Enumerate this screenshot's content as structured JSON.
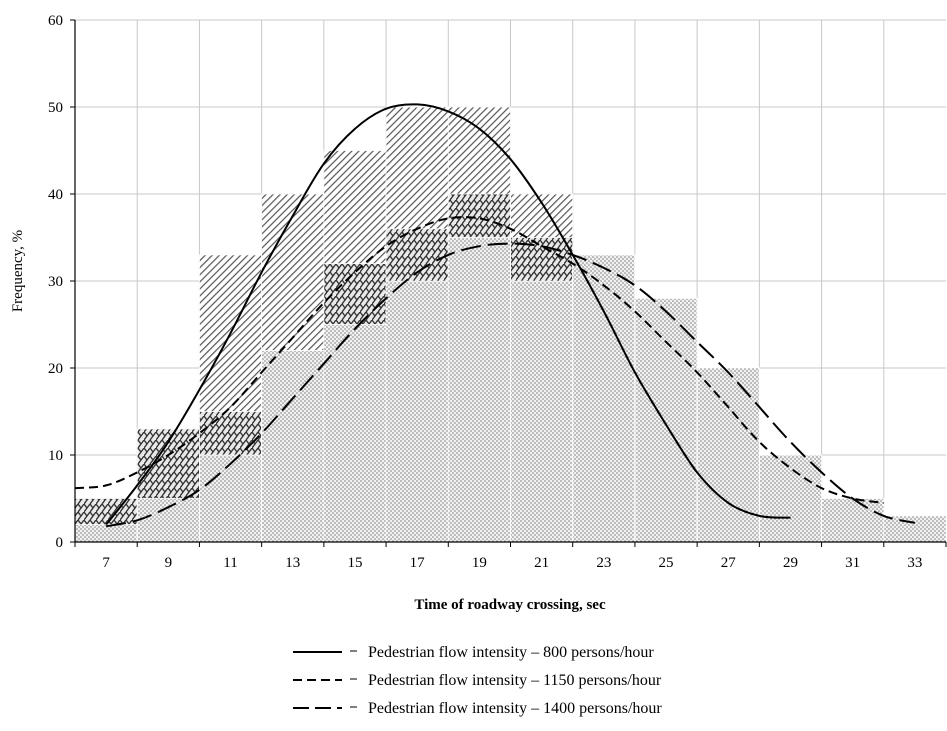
{
  "chart_data": {
    "type": "bar",
    "xlabel": "Time of roadway crossing, sec",
    "ylabel": "Frequency, %",
    "ylim": [
      0,
      60
    ],
    "yticks": [
      0,
      10,
      20,
      30,
      40,
      50,
      60
    ],
    "xticks": [
      7,
      9,
      11,
      13,
      15,
      17,
      19,
      21,
      23,
      25,
      27,
      29,
      31,
      33
    ],
    "grid": true,
    "legend_position": "bottom",
    "histograms": [
      {
        "pattern": "diagonal-hatch",
        "color": "#555555",
        "bins": [
          {
            "from": 6,
            "to": 8,
            "value": 5
          },
          {
            "from": 8,
            "to": 10,
            "value": 13
          },
          {
            "from": 10,
            "to": 12,
            "value": 33
          },
          {
            "from": 12,
            "to": 14,
            "value": 40
          },
          {
            "from": 14,
            "to": 16,
            "value": 45
          },
          {
            "from": 16,
            "to": 18,
            "value": 50
          },
          {
            "from": 18,
            "to": 20,
            "value": 50
          },
          {
            "from": 20,
            "to": 22,
            "value": 40
          },
          {
            "from": 22,
            "to": 24,
            "value": 33
          },
          {
            "from": 24,
            "to": 26,
            "value": 28
          },
          {
            "from": 26,
            "to": 28,
            "value": 20
          },
          {
            "from": 28,
            "to": 30,
            "value": 10
          },
          {
            "from": 30,
            "to": 32,
            "value": 5
          },
          {
            "from": 32,
            "to": 34,
            "value": 3
          }
        ]
      },
      {
        "pattern": "weave",
        "color": "#333333",
        "bins": [
          {
            "from": 6,
            "to": 8,
            "value": 5
          },
          {
            "from": 8,
            "to": 10,
            "value": 13
          },
          {
            "from": 10,
            "to": 12,
            "value": 15
          },
          {
            "from": 12,
            "to": 14,
            "value": 22
          },
          {
            "from": 14,
            "to": 16,
            "value": 32
          },
          {
            "from": 16,
            "to": 18,
            "value": 36
          },
          {
            "from": 18,
            "to": 20,
            "value": 40
          },
          {
            "from": 20,
            "to": 22,
            "value": 35
          },
          {
            "from": 22,
            "to": 24,
            "value": 33
          },
          {
            "from": 24,
            "to": 26,
            "value": 28
          },
          {
            "from": 26,
            "to": 28,
            "value": 20
          },
          {
            "from": 28,
            "to": 30,
            "value": 10
          },
          {
            "from": 30,
            "to": 32,
            "value": 5
          },
          {
            "from": 32,
            "to": 34,
            "value": 3
          }
        ]
      },
      {
        "pattern": "dots",
        "color": "#777777",
        "bins": [
          {
            "from": 6,
            "to": 8,
            "value": 2
          },
          {
            "from": 8,
            "to": 10,
            "value": 5
          },
          {
            "from": 10,
            "to": 12,
            "value": 10
          },
          {
            "from": 12,
            "to": 14,
            "value": 22
          },
          {
            "from": 14,
            "to": 16,
            "value": 25
          },
          {
            "from": 16,
            "to": 18,
            "value": 30
          },
          {
            "from": 18,
            "to": 20,
            "value": 35
          },
          {
            "from": 20,
            "to": 22,
            "value": 30
          },
          {
            "from": 22,
            "to": 24,
            "value": 33
          },
          {
            "from": 24,
            "to": 26,
            "value": 28
          },
          {
            "from": 26,
            "to": 28,
            "value": 20
          },
          {
            "from": 28,
            "to": 30,
            "value": 10
          },
          {
            "from": 30,
            "to": 32,
            "value": 5
          },
          {
            "from": 32,
            "to": 34,
            "value": 3
          }
        ]
      }
    ],
    "series": [
      {
        "name": "Pedestrian flow intensity – 800 persons/hour",
        "dash": "solid",
        "x": [
          7,
          8,
          9,
          10,
          11,
          12,
          13,
          14,
          15,
          16,
          17,
          18,
          19,
          20,
          21,
          22,
          23,
          24,
          25,
          26,
          27,
          28,
          29
        ],
        "y": [
          2,
          6.5,
          11.5,
          17.5,
          24,
          31,
          37.5,
          43.5,
          47.5,
          49.8,
          50.3,
          49.5,
          47.5,
          44,
          39,
          33,
          26.5,
          19.5,
          13.5,
          8,
          4.5,
          3,
          2.8
        ]
      },
      {
        "name": "Pedestrian flow intensity – 1150 persons/hour",
        "dash": "short-dash",
        "x": [
          6,
          7,
          8,
          9,
          10,
          11,
          12,
          13,
          14,
          15,
          16,
          17,
          18,
          19,
          20,
          21,
          22,
          23,
          24,
          25,
          26,
          27,
          28,
          29,
          30,
          31,
          32
        ],
        "y": [
          6.2,
          6.5,
          8,
          10,
          12.5,
          15.5,
          19.5,
          23.5,
          27.5,
          31,
          34,
          36,
          37.2,
          37.2,
          36,
          34,
          32,
          29.5,
          26.5,
          23,
          19.5,
          15.5,
          11.5,
          8.5,
          6.2,
          5,
          4.5
        ]
      },
      {
        "name": "Pedestrian flow intensity – 1400 persons/hour",
        "dash": "long-dash",
        "x": [
          7,
          8,
          9,
          10,
          11,
          12,
          13,
          14,
          15,
          16,
          17,
          18,
          19,
          20,
          21,
          22,
          23,
          24,
          25,
          26,
          27,
          28,
          29,
          30,
          31,
          32,
          33
        ],
        "y": [
          1.8,
          2.5,
          4,
          6,
          9,
          12.5,
          16.5,
          20.5,
          24.5,
          28,
          31,
          33,
          34,
          34.3,
          34,
          33,
          31.5,
          29.5,
          26.5,
          23,
          19.5,
          15.5,
          11.5,
          8,
          5,
          3,
          2.2
        ]
      }
    ]
  }
}
